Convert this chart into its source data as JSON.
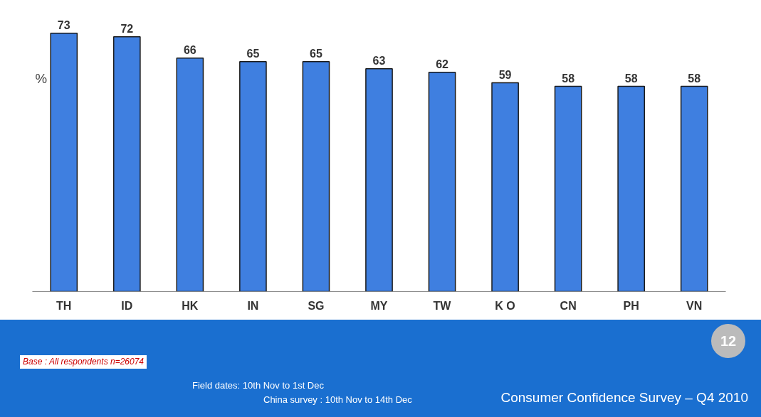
{
  "chart_data": {
    "type": "bar",
    "ylabel": "%",
    "categories": [
      "TH",
      "ID",
      "HK",
      "IN",
      "SG",
      "MY",
      "TW",
      "K O",
      "CN",
      "PH",
      "VN"
    ],
    "values": [
      73,
      72,
      66,
      65,
      65,
      63,
      62,
      59,
      58,
      58,
      58
    ],
    "color": "#3f7fe0",
    "data_labels": true,
    "tick_labels": "x",
    "grid": false,
    "annotations": [
      "12",
      "Base : All respondents n=26074",
      "Field dates: 10th Nov to 1st Dec",
      "China survey : 10th Nov to 14th Dec",
      "Consumer Confidence Survey – Q4 2010"
    ]
  }
}
